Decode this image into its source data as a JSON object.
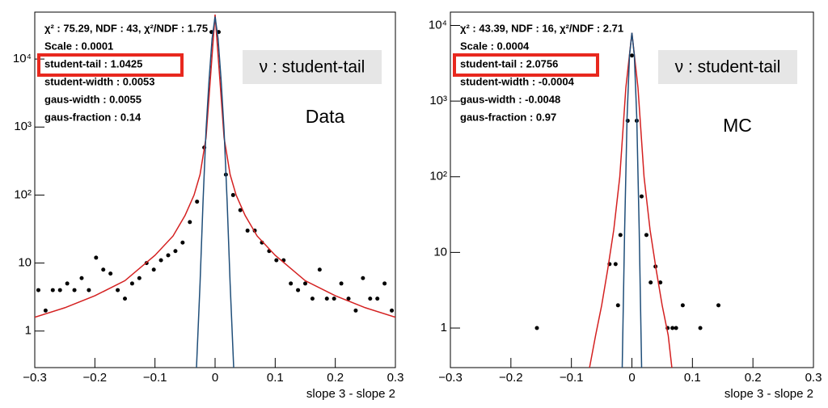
{
  "chart_data": [
    {
      "type": "scatter",
      "log_y": true,
      "x_label": "slope 3 - slope 2",
      "stats": [
        "χ² : 75.29, NDF : 43, χ²/NDF : 1.75",
        "Scale : 0.0001",
        "student-tail : 1.0425",
        "student-width : 0.0053",
        "gaus-width : 0.0055",
        "gaus-fraction : 0.14"
      ],
      "annotations": [
        "ν : student-tail",
        "Data"
      ],
      "xlim": [
        -0.3,
        0.3
      ],
      "ylim": [
        0.29,
        49000
      ],
      "xticks": [
        {
          "value": -0.3,
          "label": "−0.3"
        },
        {
          "value": -0.2,
          "label": "−0.2"
        },
        {
          "value": -0.1,
          "label": "−0.1"
        },
        0,
        0.1,
        0.2,
        0.3
      ],
      "yticks": [
        1,
        10,
        {
          "value": 100,
          "label": "10²"
        },
        {
          "value": 1000,
          "label": "10³"
        },
        {
          "value": 10000,
          "label": "10⁴"
        }
      ],
      "series": [
        {
          "type": "scatter",
          "color": "#000000",
          "x": [
            -0.294,
            -0.282,
            -0.27,
            -0.258,
            -0.246,
            -0.234,
            -0.222,
            -0.21,
            -0.198,
            -0.186,
            -0.174,
            -0.162,
            -0.15,
            -0.138,
            -0.126,
            -0.114,
            -0.102,
            -0.09,
            -0.078,
            -0.066,
            -0.054,
            -0.042,
            -0.03,
            -0.018,
            -0.006,
            0.006,
            0.018,
            0.03,
            0.042,
            0.054,
            0.066,
            0.078,
            0.09,
            0.102,
            0.114,
            0.126,
            0.138,
            0.15,
            0.162,
            0.174,
            0.186,
            0.198,
            0.21,
            0.222,
            0.234,
            0.246,
            0.258,
            0.27,
            0.282,
            0.294
          ],
          "values": [
            4,
            2,
            4,
            4,
            5,
            4,
            6,
            4,
            12,
            8,
            7,
            4,
            3,
            5,
            6,
            10,
            8,
            11,
            13,
            15,
            20,
            40,
            80,
            500,
            25000,
            25000,
            200,
            100,
            60,
            30,
            30,
            20,
            15,
            11,
            11,
            5,
            4,
            5,
            3,
            8,
            3,
            3,
            5,
            3,
            2,
            6,
            3,
            3,
            5,
            2
          ]
        },
        {
          "type": "line",
          "color": "#d42020",
          "x": [
            -0.3,
            -0.25,
            -0.2,
            -0.15,
            -0.1,
            -0.07,
            -0.05,
            -0.035,
            -0.025,
            -0.015,
            -0.008,
            0,
            0.008,
            0.015,
            0.025,
            0.035,
            0.05,
            0.07,
            0.1,
            0.15,
            0.2,
            0.25,
            0.3
          ],
          "values": [
            1.6,
            2.2,
            3.3,
            5.5,
            13,
            25,
            50,
            100,
            200,
            700,
            5000,
            45000,
            5000,
            700,
            200,
            100,
            50,
            25,
            13,
            5.5,
            3.3,
            2.2,
            1.6
          ]
        },
        {
          "type": "line",
          "color": "#1f4e79",
          "x": [
            -0.031,
            -0.025,
            -0.02,
            -0.015,
            -0.01,
            -0.005,
            0,
            0.005,
            0.01,
            0.015,
            0.02,
            0.025,
            0.031
          ],
          "values": [
            0.29,
            5,
            80,
            900,
            5000,
            20000,
            42000,
            20000,
            5000,
            900,
            80,
            5,
            0.29
          ]
        }
      ]
    },
    {
      "type": "scatter",
      "log_y": true,
      "x_label": "slope 3 - slope 2",
      "stats": [
        "χ² : 43.39, NDF : 16, χ²/NDF : 2.71",
        "Scale : 0.0004",
        "student-tail : 2.0756",
        "student-width : -0.0004",
        "gaus-width : -0.0048",
        "gaus-fraction : 0.97"
      ],
      "annotations": [
        "ν : student-tail",
        "MC"
      ],
      "xlim": [
        -0.3,
        0.3
      ],
      "ylim": [
        0.3,
        15000
      ],
      "xticks": [
        {
          "value": -0.3,
          "label": "−0.3"
        },
        {
          "value": -0.2,
          "label": "−0.2"
        },
        {
          "value": -0.1,
          "label": "−0.1"
        },
        0,
        0.1,
        0.2,
        0.3
      ],
      "yticks": [
        1,
        10,
        {
          "value": 100,
          "label": "10²"
        },
        {
          "value": 1000,
          "label": "10³"
        },
        {
          "value": 10000,
          "label": "10⁴"
        }
      ],
      "series": [
        {
          "type": "scatter",
          "color": "#000000",
          "x": [
            -0.157,
            -0.037,
            -0.027,
            -0.023,
            -0.019,
            -0.007,
            0,
            0.008,
            0.016,
            0.024,
            0.031,
            0.039,
            0.047,
            0.059,
            0.067,
            0.073,
            0.084,
            0.113,
            0.143
          ],
          "values": [
            1,
            7,
            7,
            2,
            17,
            550,
            4000,
            550,
            55,
            17,
            4,
            6.5,
            4,
            1,
            1,
            1,
            2,
            1,
            2
          ]
        },
        {
          "type": "line",
          "color": "#d42020",
          "x": [
            -0.07,
            -0.06,
            -0.05,
            -0.04,
            -0.03,
            -0.02,
            -0.01,
            0,
            0.01,
            0.02,
            0.03,
            0.04,
            0.05,
            0.06,
            0.066
          ],
          "values": [
            0.3,
            0.8,
            2,
            6,
            20,
            100,
            1500,
            8000,
            1500,
            100,
            20,
            6,
            2,
            0.8,
            0.3
          ]
        },
        {
          "type": "line",
          "color": "#1f4e79",
          "x": [
            -0.016,
            -0.012,
            -0.008,
            -0.004,
            0,
            0.004,
            0.008,
            0.012,
            0.016
          ],
          "values": [
            0.3,
            20,
            600,
            4000,
            8000,
            4000,
            600,
            20,
            0.3
          ]
        }
      ]
    }
  ]
}
